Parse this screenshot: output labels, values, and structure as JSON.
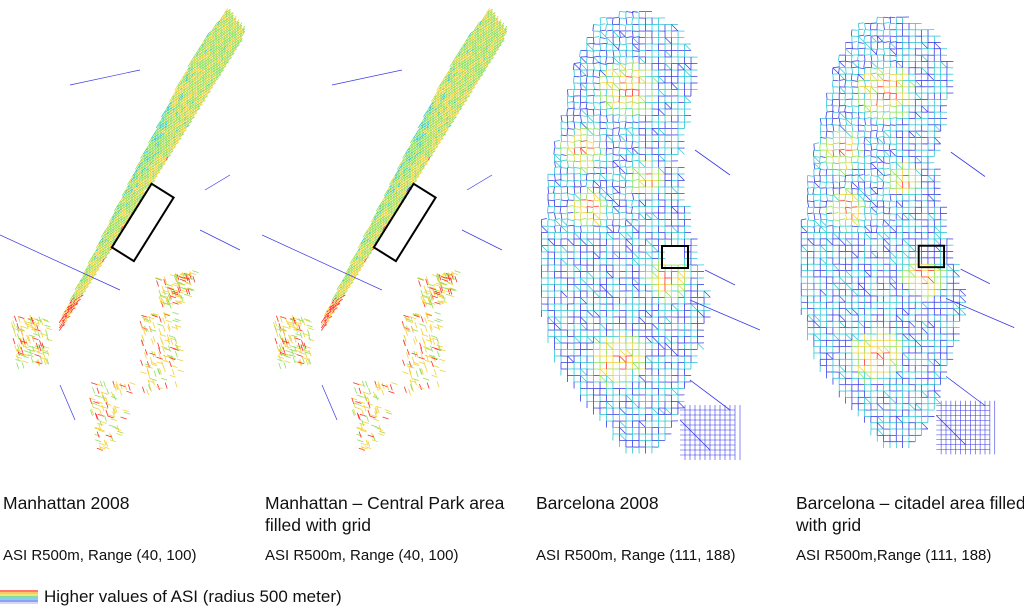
{
  "panels": [
    {
      "title": "Manhattan 2008",
      "subtitle": "ASI R500m, Range (40, 100)"
    },
    {
      "title": "Manhattan – Central Park area filled with grid",
      "subtitle": "ASI R500m, Range (40, 100)"
    },
    {
      "title": "Barcelona 2008",
      "subtitle": "ASI R500m, Range (111, 188)"
    },
    {
      "title": "Barcelona – citadel area filled with grid",
      "subtitle": "ASI R500m,Range (111, 188)"
    }
  ],
  "legend": {
    "label": "Higher values of ASI (radius 500 meter)"
  },
  "colors": {
    "low": "#3a3ae8",
    "mid1": "#2ec7d6",
    "mid2": "#8ee05a",
    "mid3": "#f2d23a",
    "high": "#ff2d2d",
    "box": "#000000"
  }
}
